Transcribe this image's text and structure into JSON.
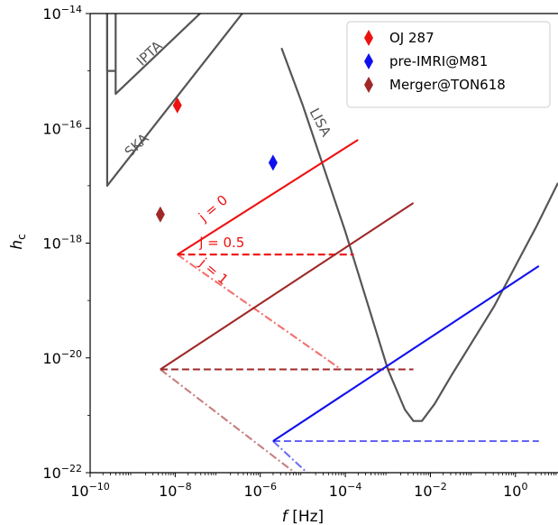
{
  "chart_data": {
    "type": "line",
    "xscale": "log",
    "yscale": "log",
    "xlim_log10": [
      -10,
      1
    ],
    "ylim_log10": [
      -22,
      -14
    ],
    "xlabel_var": "f",
    "xlabel_unit": "[Hz]",
    "ylabel": "h",
    "ylabel_sub": "c",
    "x_ticks": [
      {
        "base": "10",
        "exp": "−10",
        "log10": -10
      },
      {
        "base": "10",
        "exp": "−8",
        "log10": -8
      },
      {
        "base": "10",
        "exp": "−6",
        "log10": -6
      },
      {
        "base": "10",
        "exp": "−4",
        "log10": -4
      },
      {
        "base": "10",
        "exp": "−2",
        "log10": -2
      },
      {
        "base": "10",
        "exp": "0",
        "log10": 0
      }
    ],
    "y_ticks": [
      {
        "base": "10",
        "exp": "−22",
        "log10": -22
      },
      {
        "base": "10",
        "exp": "−20",
        "log10": -20
      },
      {
        "base": "10",
        "exp": "−18",
        "log10": -18
      },
      {
        "base": "10",
        "exp": "−16",
        "log10": -16
      },
      {
        "base": "10",
        "exp": "−14",
        "log10": -14
      }
    ],
    "legend": [
      {
        "label": "OJ 287",
        "color": "#ee1111"
      },
      {
        "label": "pre-IMRI@M81",
        "color": "#1010ee"
      },
      {
        "label": "Merger@TON618",
        "color": "#a02828"
      }
    ],
    "markers": [
      {
        "label": "OJ 287",
        "logx": -7.95,
        "logy": -15.6,
        "color": "#ee1111"
      },
      {
        "label": "pre-IMRI@M81",
        "logx": -5.7,
        "logy": -16.6,
        "color": "#1010ee"
      },
      {
        "label": "Merger@TON618",
        "logx": -8.35,
        "logy": -17.5,
        "color": "#a02828"
      }
    ],
    "sensitivity_curves": [
      {
        "label": "IPTA",
        "color": "#555555",
        "points": [
          [
            -9.6,
            -14.0
          ],
          [
            -9.6,
            -15.0
          ],
          [
            -9.4,
            -15.0
          ],
          [
            -9.4,
            -14.0
          ],
          [
            -9.4,
            -15.4
          ],
          [
            -6.0,
            -13.0
          ]
        ]
      },
      {
        "label": "SKA",
        "color": "#555555",
        "points": [
          [
            -9.6,
            -14.0
          ],
          [
            -9.6,
            -17.0
          ],
          [
            -6.0,
            -13.6
          ]
        ]
      },
      {
        "label": "LISA",
        "color": "#555555",
        "points": [
          [
            -5.5,
            -14.6
          ],
          [
            -5.0,
            -15.6
          ],
          [
            -4.5,
            -16.7
          ],
          [
            -4.0,
            -17.8
          ],
          [
            -3.5,
            -19.0
          ],
          [
            -3.0,
            -20.2
          ],
          [
            -2.6,
            -20.9
          ],
          [
            -2.4,
            -21.1
          ],
          [
            -2.2,
            -21.1
          ],
          [
            -1.9,
            -20.8
          ],
          [
            -1.5,
            -20.3
          ],
          [
            -1.0,
            -19.7
          ],
          [
            -0.5,
            -19.1
          ],
          [
            0.0,
            -18.4
          ],
          [
            0.5,
            -17.7
          ],
          [
            1.0,
            -16.95
          ]
        ]
      }
    ],
    "curve_labels": [
      {
        "text": "IPTA",
        "logx": -8.6,
        "logy": -14.7,
        "angle": -43,
        "color": "#555555"
      },
      {
        "text": "SKA",
        "logx": -8.9,
        "logy": -16.3,
        "angle": -43,
        "color": "#555555"
      },
      {
        "text": "LISA",
        "logx": -4.6,
        "logy": -15.9,
        "angle": 62,
        "color": "#555555"
      },
      {
        "text": "j = 0",
        "logx": -7.1,
        "logy": -17.4,
        "angle": -40,
        "color": "#ee1111"
      },
      {
        "text": "j = 0.5",
        "logx": -6.9,
        "logy": -18.0,
        "angle": 0,
        "color": "#ee1111"
      },
      {
        "text": "j = 1",
        "logx": -7.1,
        "logy": -18.5,
        "angle": 40,
        "color": "#ee1111"
      }
    ],
    "series": [
      {
        "source": "OJ 287",
        "j": "0",
        "color": "#ee1111",
        "dash": "solid",
        "opacity": 1,
        "points": [
          [
            -7.95,
            -18.2
          ],
          [
            -3.7,
            -16.2
          ]
        ]
      },
      {
        "source": "OJ 287",
        "j": "0.5",
        "color": "#ee1111",
        "dash": "dashed",
        "opacity": 1,
        "points": [
          [
            -7.95,
            -18.2
          ],
          [
            -3.8,
            -18.2
          ]
        ]
      },
      {
        "source": "OJ 287",
        "j": "1",
        "color": "#ee1111",
        "dash": "dashdot",
        "opacity": 0.6,
        "points": [
          [
            -7.95,
            -18.2
          ],
          [
            -4.1,
            -20.2
          ]
        ]
      },
      {
        "source": "Merger@TON618",
        "j": "0",
        "color": "#a02828",
        "dash": "solid",
        "opacity": 1,
        "points": [
          [
            -8.35,
            -20.2
          ],
          [
            -2.4,
            -17.3
          ]
        ]
      },
      {
        "source": "Merger@TON618",
        "j": "0.5",
        "color": "#a02828",
        "dash": "dashed",
        "opacity": 1,
        "points": [
          [
            -8.35,
            -20.2
          ],
          [
            -2.4,
            -20.2
          ]
        ]
      },
      {
        "source": "Merger@TON618",
        "j": "1",
        "color": "#a02828",
        "dash": "dashdot",
        "opacity": 0.6,
        "points": [
          [
            -8.35,
            -20.2
          ],
          [
            -5.1,
            -22.05
          ]
        ]
      },
      {
        "source": "pre-IMRI@M81",
        "j": "0",
        "color": "#1010ee",
        "dash": "solid",
        "opacity": 1,
        "points": [
          [
            -5.7,
            -21.45
          ],
          [
            0.55,
            -18.4
          ]
        ]
      },
      {
        "source": "pre-IMRI@M81",
        "j": "0.5",
        "color": "#1010ee",
        "dash": "dashed",
        "opacity": 0.65,
        "points": [
          [
            -5.7,
            -21.45
          ],
          [
            0.55,
            -21.45
          ]
        ]
      },
      {
        "source": "pre-IMRI@M81",
        "j": "1",
        "color": "#1010ee",
        "dash": "dashdot",
        "opacity": 0.6,
        "points": [
          [
            -5.7,
            -21.45
          ],
          [
            -4.9,
            -22.0
          ]
        ]
      }
    ]
  }
}
